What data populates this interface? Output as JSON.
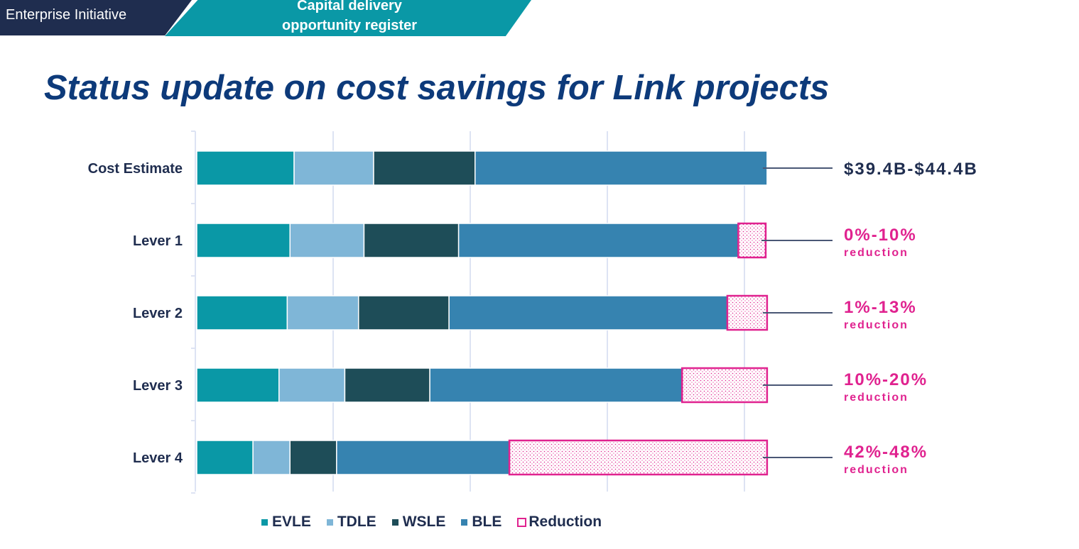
{
  "header": {
    "left_label": "Enterprise Initiative",
    "right_label_line1": "Capital delivery",
    "right_label_line2": "opportunity register"
  },
  "page_title": "Status update on cost savings for Link projects",
  "colors": {
    "EVLE": "#0a98a6",
    "TDLE": "#7fb6d7",
    "WSLE": "#1e4d58",
    "BLE": "#3683b0",
    "Reduction": "#e0228f",
    "header_dark": "#1f2d4f",
    "title": "#0d3a7a"
  },
  "chart_data": {
    "type": "bar",
    "orientation": "horizontal",
    "stacked": true,
    "title": "",
    "xlabel": "",
    "ylabel": "",
    "xlim": [
      0,
      44
    ],
    "x_ticks_labeled": false,
    "grid": true,
    "legend_position": "bottom",
    "categories": [
      "Cost Estimate",
      "Lever 1",
      "Lever 2",
      "Lever 3",
      "Lever 4"
    ],
    "series": [
      {
        "name": "EVLE",
        "values": [
          7.1,
          6.8,
          6.6,
          6.0,
          4.1
        ]
      },
      {
        "name": "TDLE",
        "values": [
          5.8,
          5.4,
          5.2,
          4.8,
          2.7
        ]
      },
      {
        "name": "WSLE",
        "values": [
          7.4,
          6.9,
          6.6,
          6.2,
          3.4
        ]
      },
      {
        "name": "BLE",
        "values": [
          21.3,
          20.4,
          20.3,
          18.4,
          12.6
        ]
      },
      {
        "name": "Reduction",
        "values": [
          0,
          2.0,
          2.9,
          6.2,
          18.8
        ]
      }
    ],
    "annotations": [
      {
        "main": "$39.4B-$44.4B",
        "sub": ""
      },
      {
        "main": "0%-10%",
        "sub": "reduction"
      },
      {
        "main": "1%-13%",
        "sub": "reduction"
      },
      {
        "main": "10%-20%",
        "sub": "reduction"
      },
      {
        "main": "42%-48%",
        "sub": "reduction"
      }
    ],
    "legend": [
      "EVLE",
      "TDLE",
      "WSLE",
      "BLE",
      "Reduction"
    ]
  }
}
